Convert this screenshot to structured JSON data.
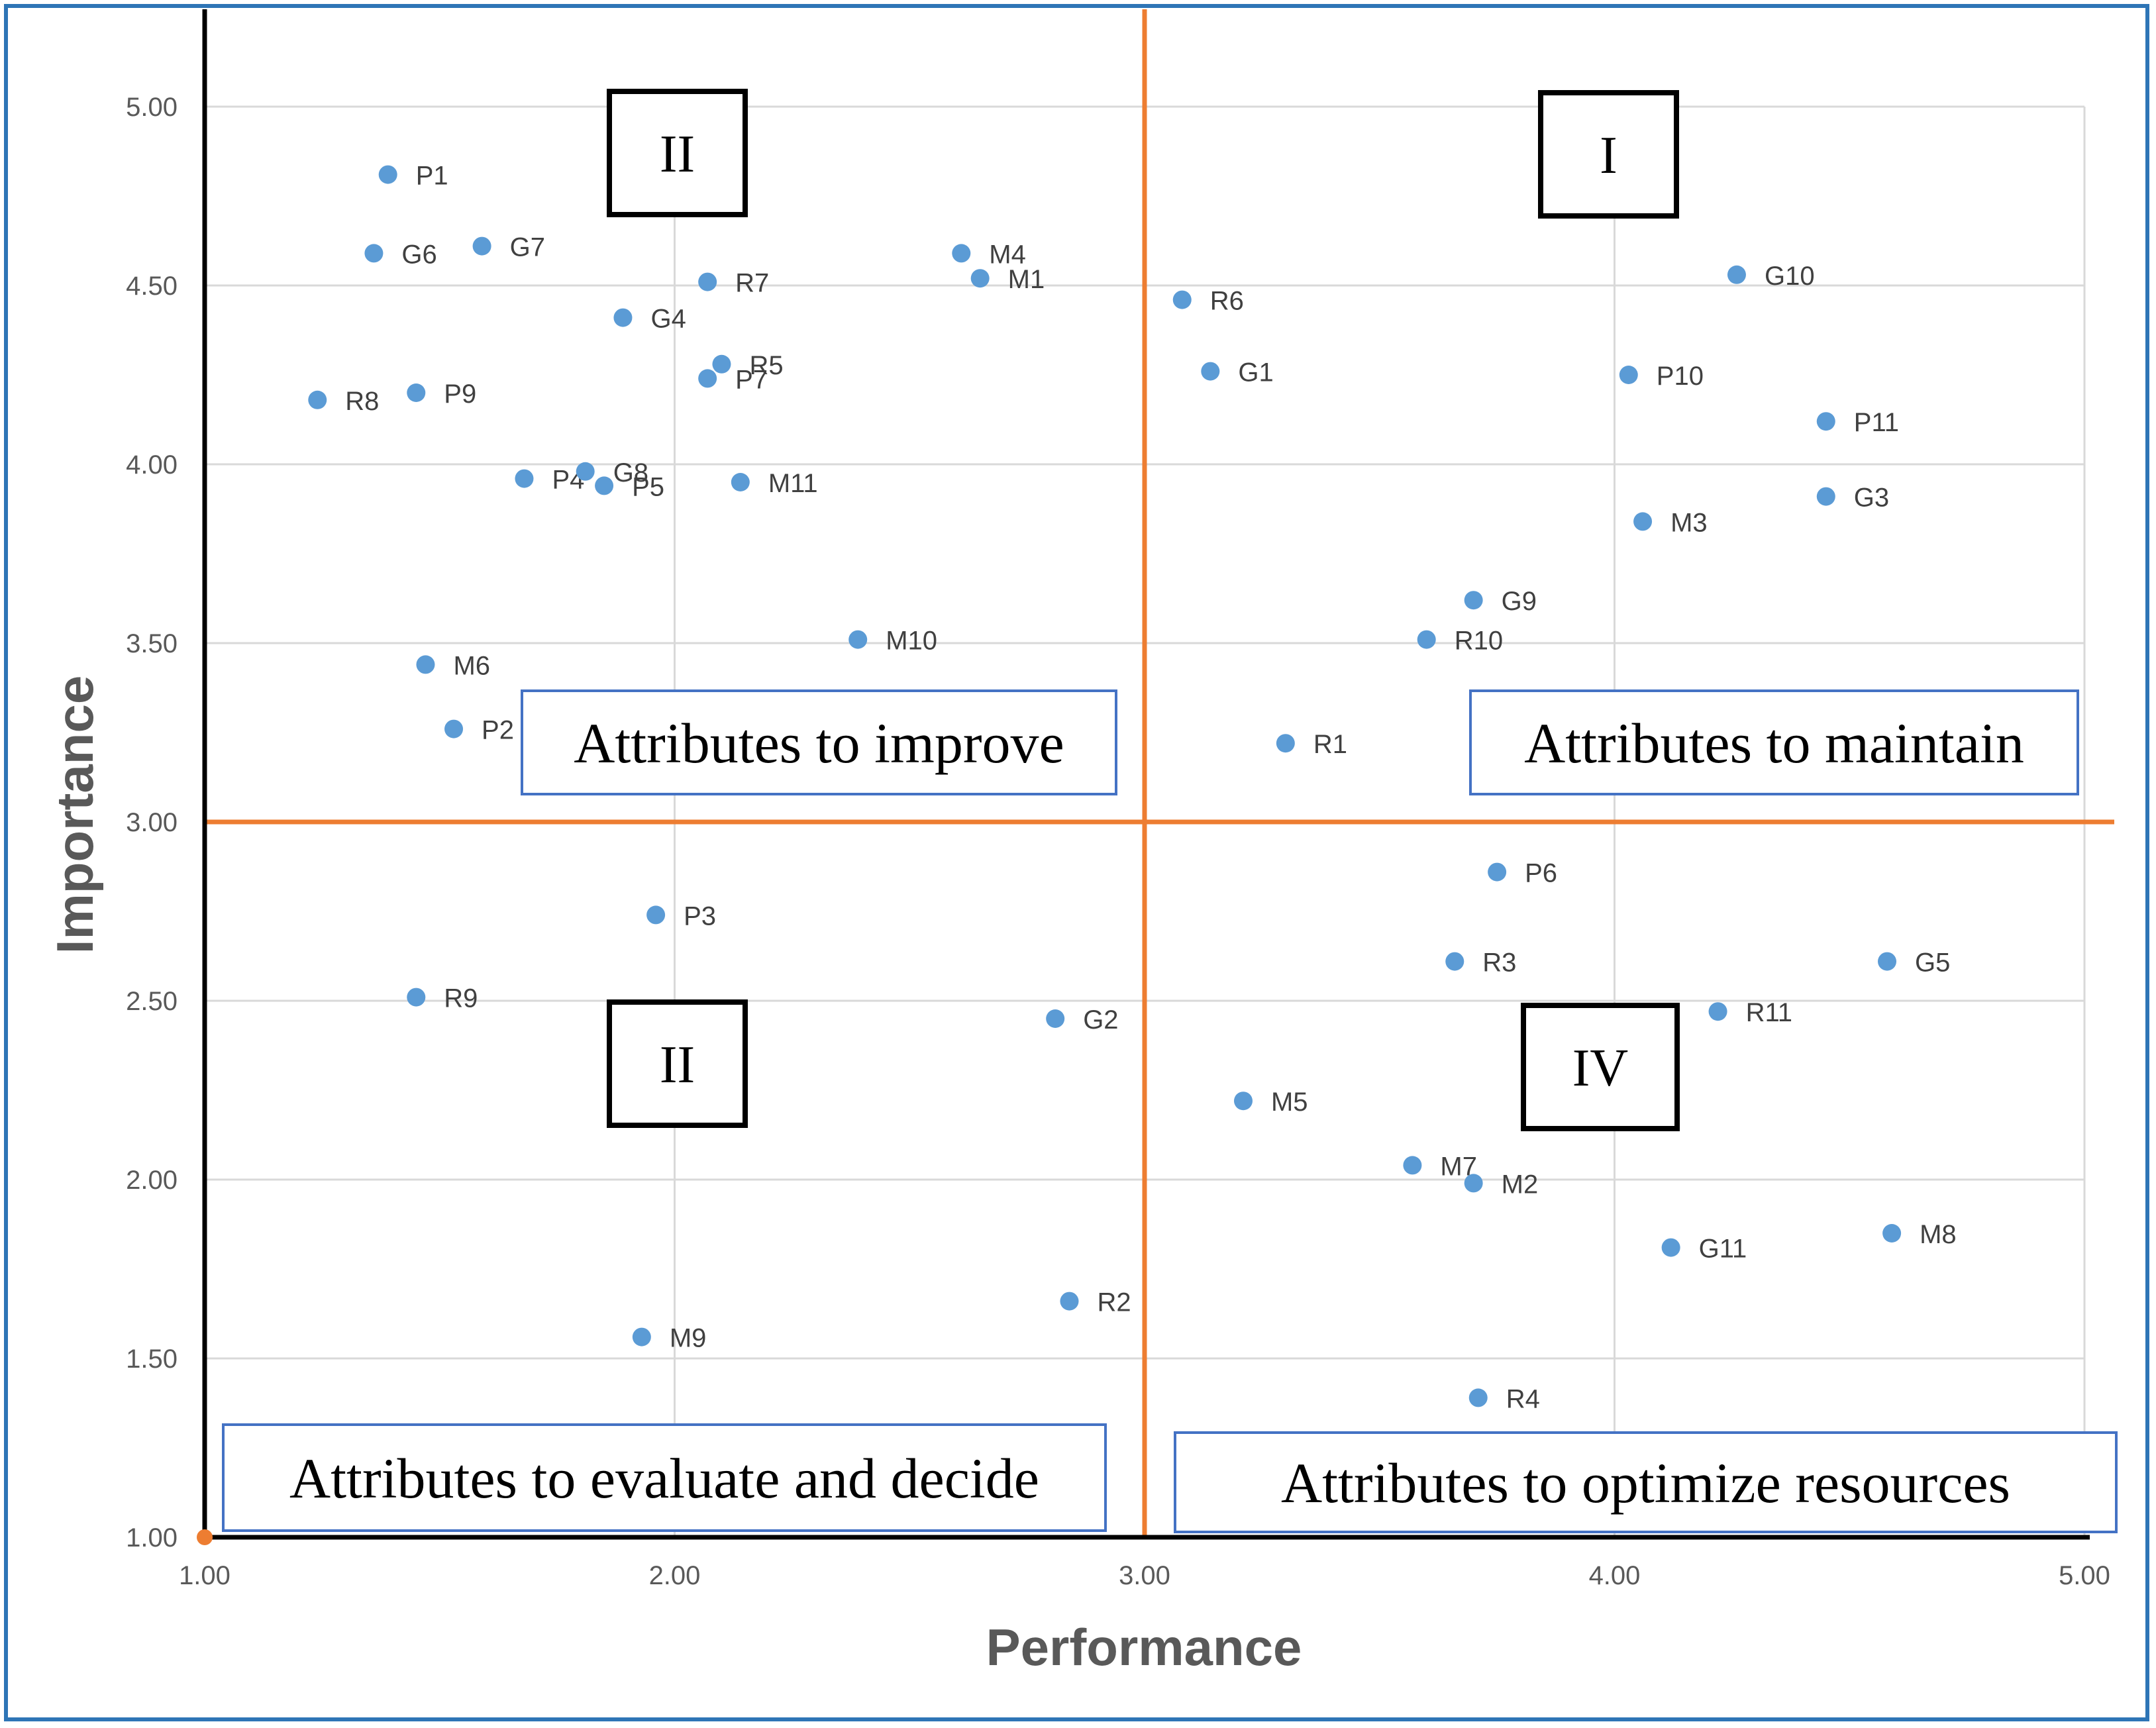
{
  "chart_data": {
    "type": "scatter",
    "title": "",
    "xlabel": "Performance",
    "ylabel": "Importance",
    "xlim": [
      1.0,
      5.0
    ],
    "ylim": [
      1.0,
      5.0
    ],
    "x_ticks": [
      "1.00",
      "2.00",
      "3.00",
      "4.00",
      "5.00"
    ],
    "y_ticks": [
      "1.00",
      "1.50",
      "2.00",
      "2.50",
      "3.00",
      "3.50",
      "4.00",
      "4.50",
      "5.00"
    ],
    "grid": true,
    "crosshair": {
      "x": 3.0,
      "y": 3.0,
      "color": "#ed7d31"
    },
    "point_color": "#5b9bd5",
    "quadrants": [
      {
        "roman": "II",
        "description": "Attributes to improve"
      },
      {
        "roman": "I",
        "description": "Attributes to maintain"
      },
      {
        "roman": "II",
        "description": "Attributes to evaluate and decide"
      },
      {
        "roman": "IV",
        "description": "Attributes to optimize resources"
      }
    ],
    "points": [
      {
        "label": "P1",
        "x": 1.39,
        "y": 4.81
      },
      {
        "label": "G6",
        "x": 1.36,
        "y": 4.59
      },
      {
        "label": "G7",
        "x": 1.59,
        "y": 4.61
      },
      {
        "label": "R7",
        "x": 2.07,
        "y": 4.51
      },
      {
        "label": "G4",
        "x": 1.89,
        "y": 4.41
      },
      {
        "label": "R5",
        "x": 2.1,
        "y": 4.28
      },
      {
        "label": "P7",
        "x": 2.07,
        "y": 4.24
      },
      {
        "label": "R8",
        "x": 1.24,
        "y": 4.18
      },
      {
        "label": "P9",
        "x": 1.45,
        "y": 4.2
      },
      {
        "label": "P4",
        "x": 1.68,
        "y": 3.96
      },
      {
        "label": "G8",
        "x": 1.81,
        "y": 3.98
      },
      {
        "label": "P5",
        "x": 1.85,
        "y": 3.94
      },
      {
        "label": "M11",
        "x": 2.14,
        "y": 3.95
      },
      {
        "label": "M4",
        "x": 2.61,
        "y": 4.59
      },
      {
        "label": "M1",
        "x": 2.65,
        "y": 4.52
      },
      {
        "label": "M10",
        "x": 2.39,
        "y": 3.51
      },
      {
        "label": "M6",
        "x": 1.47,
        "y": 3.44
      },
      {
        "label": "P2",
        "x": 1.53,
        "y": 3.26
      },
      {
        "label": "R6",
        "x": 3.08,
        "y": 4.46
      },
      {
        "label": "G1",
        "x": 3.14,
        "y": 4.26
      },
      {
        "label": "G10",
        "x": 4.26,
        "y": 4.53
      },
      {
        "label": "P10",
        "x": 4.03,
        "y": 4.25
      },
      {
        "label": "P11",
        "x": 4.45,
        "y": 4.12
      },
      {
        "label": "G3",
        "x": 4.45,
        "y": 3.91
      },
      {
        "label": "M3",
        "x": 4.06,
        "y": 3.84
      },
      {
        "label": "G9",
        "x": 3.7,
        "y": 3.62
      },
      {
        "label": "R10",
        "x": 3.6,
        "y": 3.51
      },
      {
        "label": "R1",
        "x": 3.3,
        "y": 3.22
      },
      {
        "label": "P3",
        "x": 1.96,
        "y": 2.74
      },
      {
        "label": "R9",
        "x": 1.45,
        "y": 2.51
      },
      {
        "label": "G2",
        "x": 2.81,
        "y": 2.45
      },
      {
        "label": "M9",
        "x": 1.93,
        "y": 1.56
      },
      {
        "label": "R2",
        "x": 2.84,
        "y": 1.66
      },
      {
        "label": "P6",
        "x": 3.75,
        "y": 2.86
      },
      {
        "label": "R3",
        "x": 3.66,
        "y": 2.61
      },
      {
        "label": "G5",
        "x": 4.58,
        "y": 2.61
      },
      {
        "label": "R11",
        "x": 4.22,
        "y": 2.47
      },
      {
        "label": "M5",
        "x": 3.21,
        "y": 2.22
      },
      {
        "label": "M7",
        "x": 3.57,
        "y": 2.04
      },
      {
        "label": "M2",
        "x": 3.7,
        "y": 1.99
      },
      {
        "label": "G11",
        "x": 4.12,
        "y": 1.81
      },
      {
        "label": "M8",
        "x": 4.59,
        "y": 1.85
      },
      {
        "label": "R4",
        "x": 3.71,
        "y": 1.39
      }
    ]
  }
}
